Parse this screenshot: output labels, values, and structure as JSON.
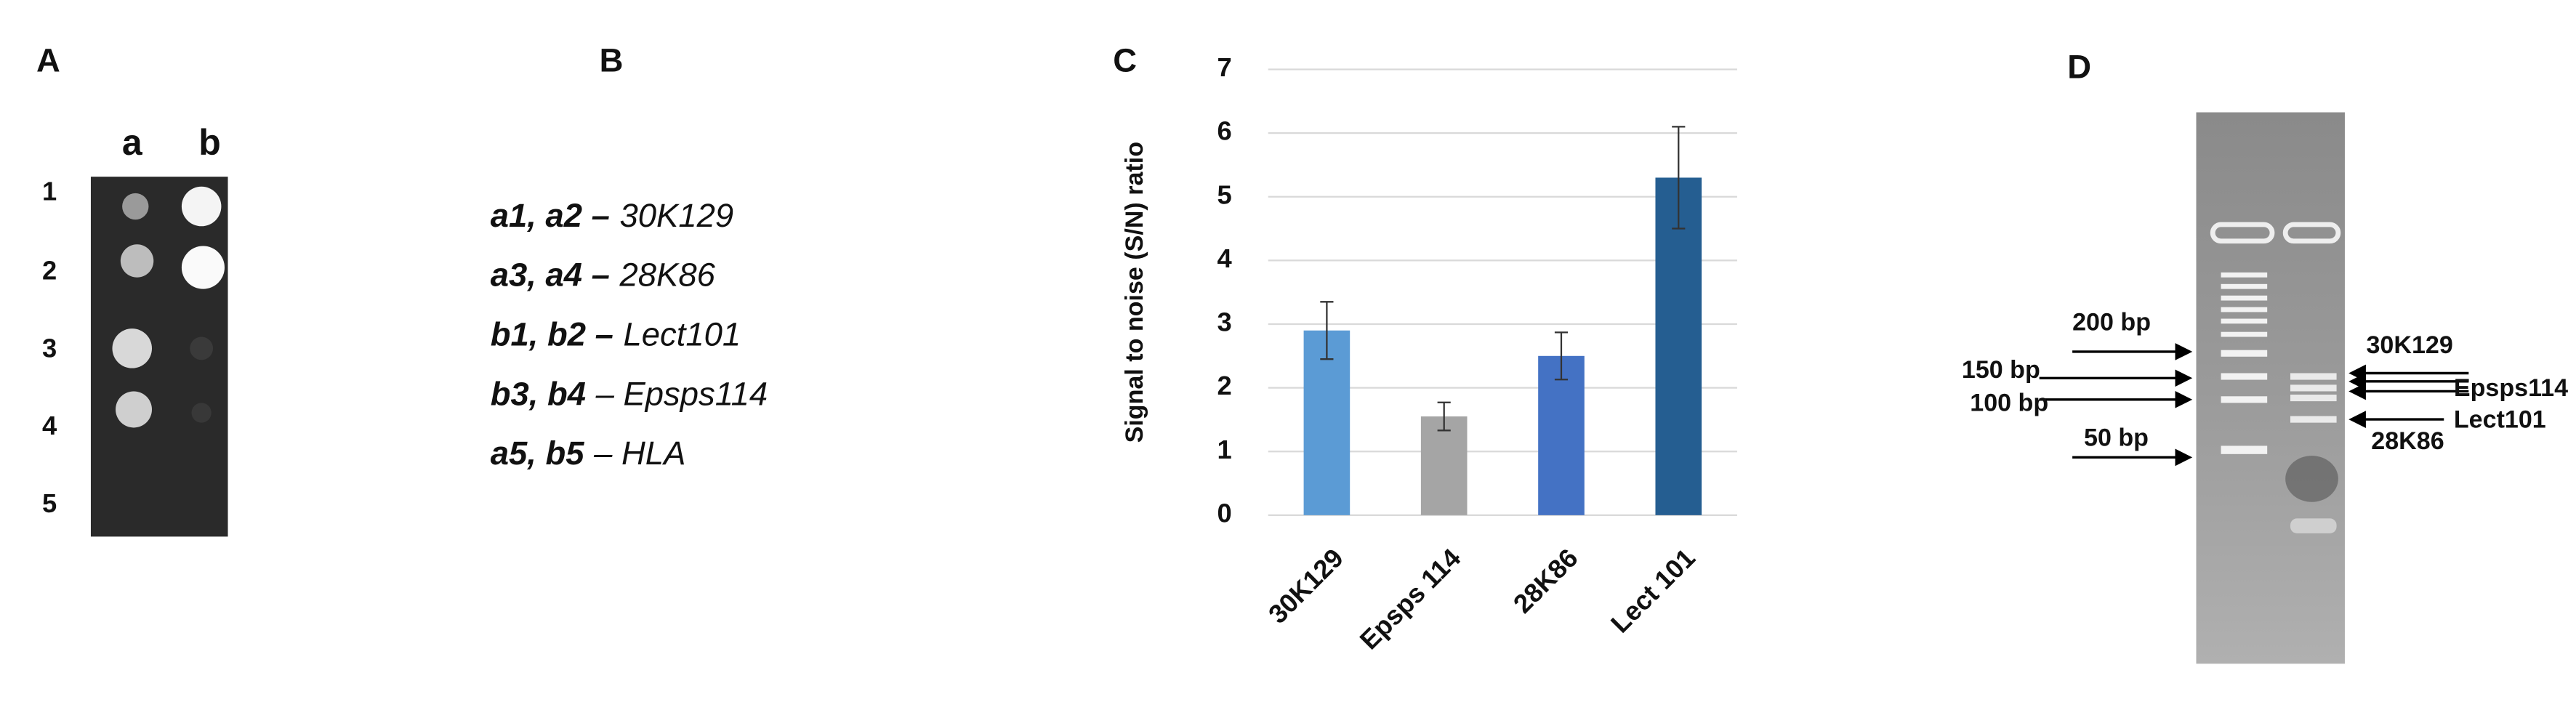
{
  "panels": {
    "A": {
      "label": "A",
      "columns": [
        "a",
        "b"
      ],
      "rows": [
        "1",
        "2",
        "3",
        "4",
        "5"
      ]
    },
    "B": {
      "label": "B",
      "items": [
        {
          "key": "a1, a2 –",
          "name": "30K129"
        },
        {
          "key": "a3, a4 –",
          "name": "28K86"
        },
        {
          "key": "b1, b2 –",
          "name": "Lect101"
        },
        {
          "key": "b3, b4",
          "name": "– Epsps114"
        },
        {
          "key": "a5, b5",
          "name": "– HLA"
        }
      ]
    },
    "C": {
      "label": "C"
    },
    "D": {
      "label": "D",
      "ladder": [
        "200 bp",
        "150 bp",
        "100 bp",
        "50 bp"
      ],
      "bands": [
        "30K129",
        "Epsps114",
        "Lect101",
        "28K86"
      ]
    }
  },
  "chart_data": {
    "type": "bar",
    "ylabel": "Signal to noise (S/N) ratio",
    "categories": [
      "30K129",
      "Epsps 114",
      "28K86",
      "Lect 101"
    ],
    "values": [
      2.9,
      1.55,
      2.5,
      5.3
    ],
    "errors": [
      0.45,
      0.22,
      0.37,
      0.8
    ],
    "colors": [
      "#5b9bd5",
      "#a5a5a5",
      "#4472c4",
      "#255e91"
    ],
    "ylim": [
      0,
      7
    ],
    "yticks": [
      0,
      1,
      2,
      3,
      4,
      5,
      6,
      7
    ],
    "grid": true
  }
}
